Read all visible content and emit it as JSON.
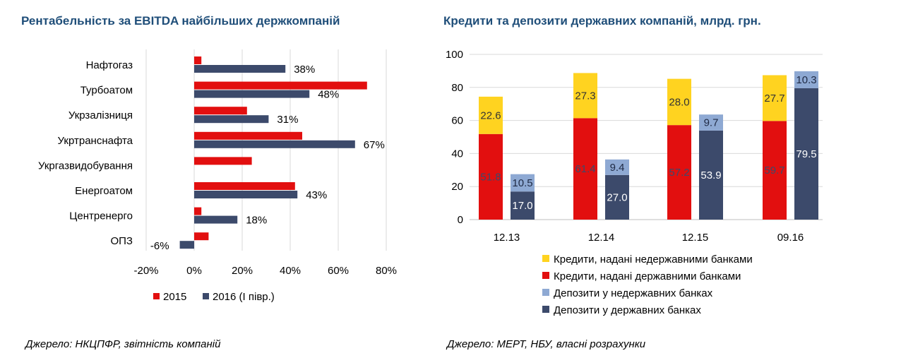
{
  "colors": {
    "red": "#e20f0f",
    "navy": "#3c4a6b",
    "yellow": "#ffd320",
    "light_blue": "#8ea9d3",
    "title": "#1f4e79",
    "grid": "#d9d9d9"
  },
  "left": {
    "title": "Рентабельність за EBITDA найбільших держкомпаній",
    "source": "Джерело: НКЦПФР, звітність компаній"
  },
  "right": {
    "title": "Кредити та депозити державних компаній, млрд. грн.",
    "source": "Джерело: МЕРТ, НБУ, власні розрахунки"
  },
  "chart_data": [
    {
      "type": "bar",
      "orientation": "horizontal",
      "title": "Рентабельність за EBITDA найбільших держкомпаній",
      "categories": [
        "Нафтогаз",
        "Турбоатом",
        "Укрзалізниця",
        "Укртранснафта",
        "Укргазвидобування",
        "Енергоатом",
        "Центренерго",
        "ОПЗ"
      ],
      "series": [
        {
          "name": "2015",
          "color": "#e20f0f",
          "values": [
            3,
            72,
            22,
            45,
            24,
            42,
            3,
            6
          ]
        },
        {
          "name": "2016 (І півр.)",
          "color": "#3c4a6b",
          "values": [
            38,
            48,
            31,
            67,
            null,
            43,
            18,
            -6
          ]
        }
      ],
      "data_labels": [
        "38%",
        "48%",
        "31%",
        "67%",
        "",
        "43%",
        "18%",
        "-6%"
      ],
      "x_ticks": [
        "-20%",
        "0%",
        "20%",
        "40%",
        "60%",
        "80%"
      ],
      "xlim": [
        -20,
        80
      ],
      "grid": true,
      "legend": "bottom"
    },
    {
      "type": "bar",
      "orientation": "vertical",
      "stacked": true,
      "title": "Кредити та депозити державних компаній, млрд. грн.",
      "categories": [
        "12.13",
        "12.14",
        "12.15",
        "09.16"
      ],
      "y_ticks": [
        "0",
        "20",
        "40",
        "60",
        "80",
        "100"
      ],
      "ylim": [
        0,
        100
      ],
      "grid": true,
      "legend": "bottom",
      "series": [
        {
          "name": "Кредити, надані недержавними банками",
          "color": "#ffd320",
          "stack": "loans",
          "values": [
            22.6,
            27.3,
            28.0,
            27.7
          ],
          "labels": [
            "22.6",
            "27.3",
            "28.0",
            "27.7"
          ]
        },
        {
          "name": "Кредити, надані державними банками",
          "color": "#e20f0f",
          "stack": "loans",
          "values": [
            51.8,
            61.4,
            57.2,
            59.7
          ],
          "labels": [
            "51.8",
            "61.4",
            "57.2",
            "59.7"
          ]
        },
        {
          "name": "Депозити у недержавних банках",
          "color": "#8ea9d3",
          "stack": "deposits",
          "values": [
            10.5,
            9.4,
            9.7,
            10.3
          ],
          "labels": [
            "10.5",
            "9.4",
            "9.7",
            "10.3"
          ]
        },
        {
          "name": "Депозити у державних банках",
          "color": "#3c4a6b",
          "stack": "deposits",
          "values": [
            17.0,
            27.0,
            53.9,
            79.5
          ],
          "labels": [
            "17.0",
            "27.0",
            "53.9",
            "79.5"
          ]
        }
      ]
    }
  ]
}
